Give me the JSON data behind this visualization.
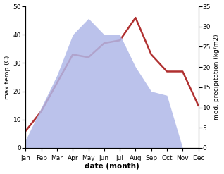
{
  "months": [
    "Jan",
    "Feb",
    "Mar",
    "Apr",
    "May",
    "Jun",
    "Jul",
    "Aug",
    "Sep",
    "Oct",
    "Nov",
    "Dec"
  ],
  "temperature": [
    6,
    13,
    23,
    33,
    32,
    37,
    38,
    46,
    33,
    27,
    27,
    15
  ],
  "precipitation": [
    2,
    10,
    18,
    28,
    32,
    28,
    28,
    20,
    14,
    13,
    0,
    0
  ],
  "temp_color": "#b03030",
  "precip_color": "#b0b8e8",
  "xlabel": "date (month)",
  "ylabel_left": "max temp (C)",
  "ylabel_right": "med. precipitation (kg/m2)",
  "ylim_left": [
    0,
    50
  ],
  "ylim_right": [
    0,
    35
  ],
  "background_color": "#ffffff"
}
